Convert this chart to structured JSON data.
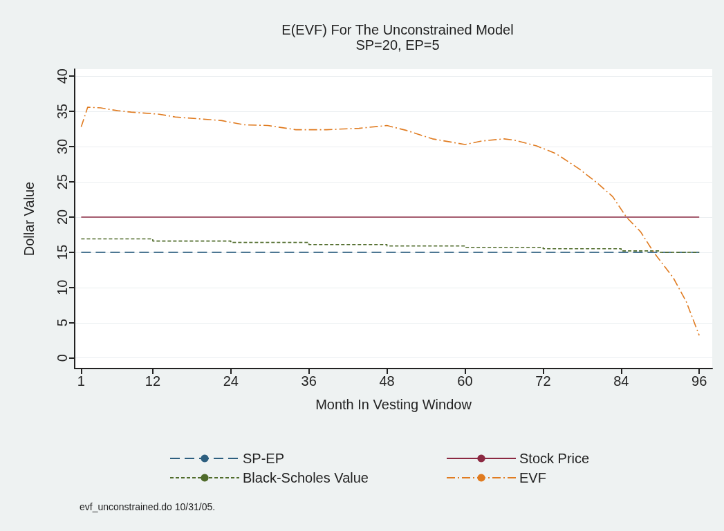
{
  "chart_data": {
    "type": "line",
    "title": "E(EVF) For The Unconstrained Model",
    "subtitle": "SP=20, EP=5",
    "xlabel": "Month In Vesting Window",
    "ylabel": "Dollar Value",
    "xlim": [
      0,
      98
    ],
    "xticks": [
      1,
      12,
      24,
      36,
      48,
      60,
      72,
      84,
      96
    ],
    "ylim": [
      -1.5,
      41
    ],
    "yticks": [
      0,
      5,
      10,
      15,
      20,
      25,
      30,
      35,
      40
    ],
    "grid": "y",
    "legend": "bottom",
    "marker": "none",
    "series": [
      {
        "name": "SP-EP",
        "color": "#2d5f7f",
        "line_style": "dashed",
        "x": [
          1,
          96
        ],
        "values": [
          15,
          15
        ]
      },
      {
        "name": "Stock Price",
        "color": "#8b2942",
        "line_style": "solid",
        "x": [
          1,
          96
        ],
        "values": [
          20,
          20
        ]
      },
      {
        "name": "Black-Scholes Value",
        "color": "#4f6b2a",
        "line_style": "dotted",
        "type": "step",
        "x": [
          1,
          12,
          24,
          36,
          48,
          60,
          72,
          84,
          90,
          96
        ],
        "values": [
          16.9,
          16.6,
          16.4,
          16.1,
          15.9,
          15.7,
          15.5,
          15.2,
          15.0,
          15.0
        ]
      },
      {
        "name": "EVF",
        "color": "#e07b20",
        "line_style": "dashdot",
        "x": [
          1,
          2,
          4,
          6.6,
          8.7,
          13,
          15.5,
          19.8,
          22.6,
          26,
          29.7,
          34,
          38.7,
          43.7,
          48,
          51,
          55,
          60,
          62.6,
          66,
          67.7,
          71,
          74,
          77.6,
          80.5,
          82.7,
          84.8,
          87,
          89,
          92,
          94,
          96
        ],
        "values": [
          32.8,
          35.6,
          35.5,
          35.1,
          34.9,
          34.6,
          34.2,
          33.9,
          33.7,
          33.1,
          33.0,
          32.4,
          32.4,
          32.6,
          33.0,
          32.3,
          31.1,
          30.3,
          30.8,
          31.1,
          30.9,
          30.1,
          29.0,
          26.8,
          24.7,
          22.9,
          20.0,
          17.9,
          15.0,
          11.4,
          8.0,
          3.2
        ]
      }
    ],
    "annotations": [
      "evf_unconstrained.do 10/31/05."
    ]
  }
}
